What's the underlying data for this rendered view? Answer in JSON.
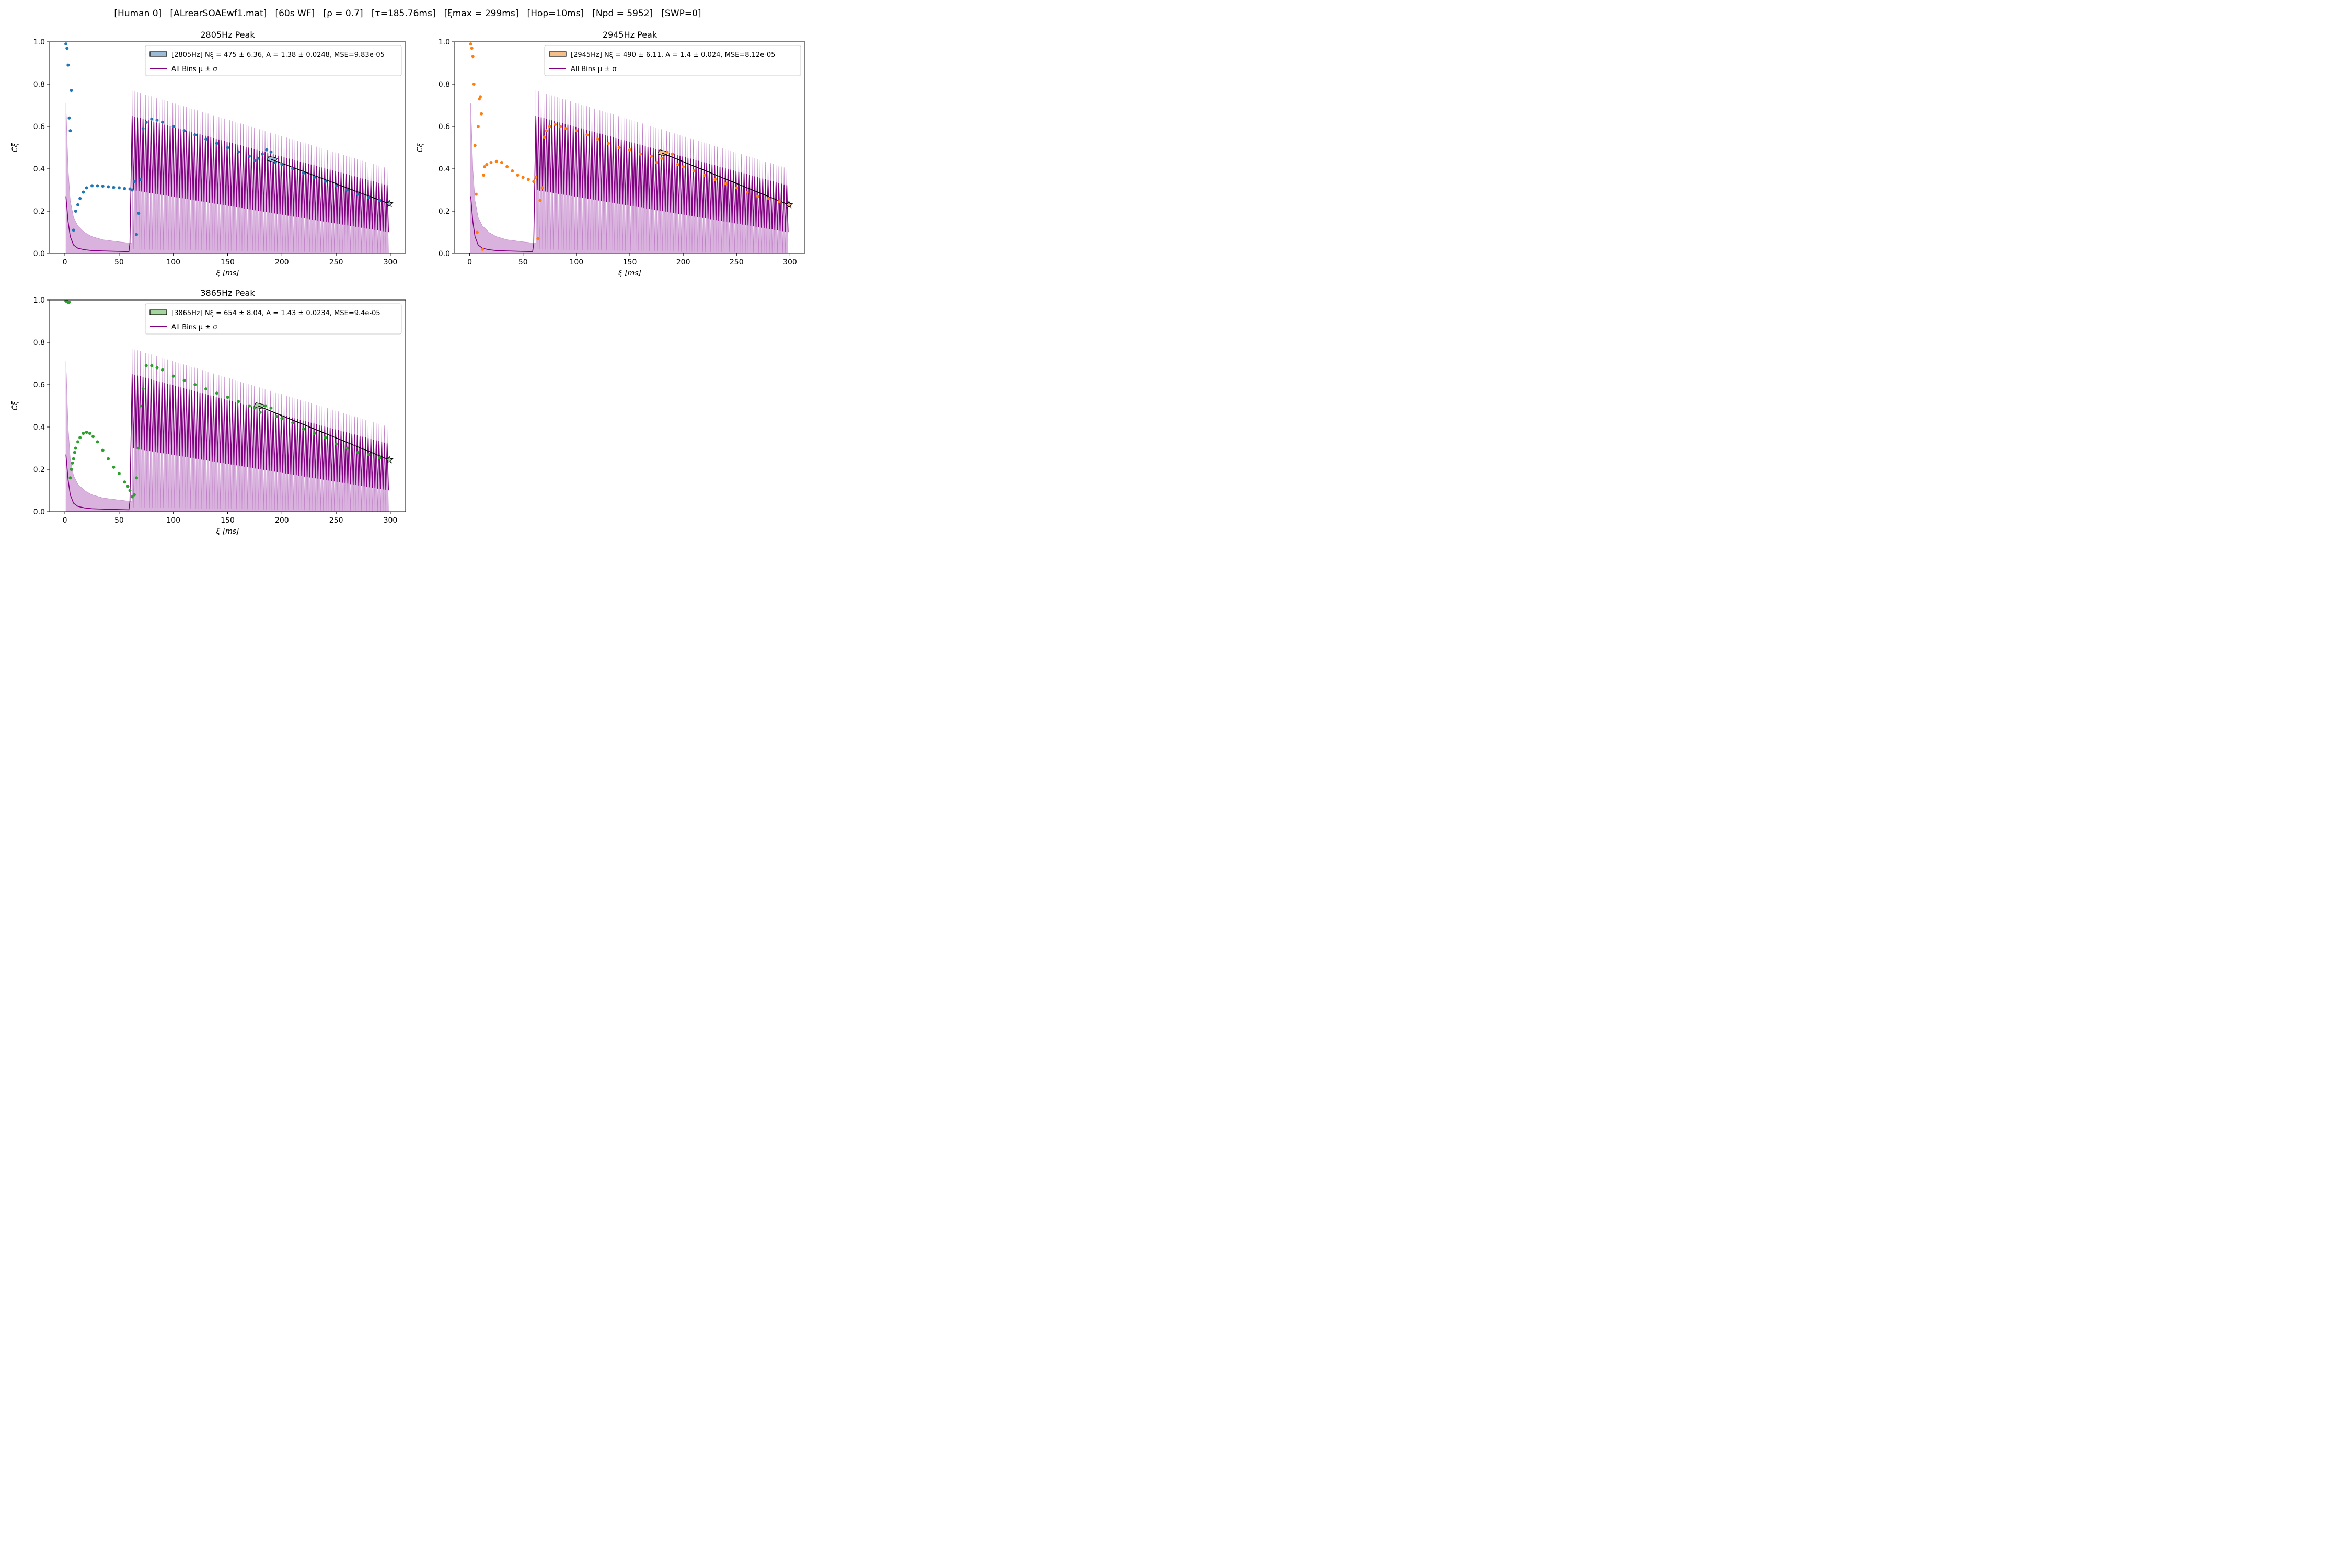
{
  "figure": {
    "suptitle": "[Human 0]   [ALrearSOAEwf1.mat]   [60s WF]   [ρ = 0.7]   [τ=185.76ms]   [ξmax = 299ms]   [Hop=10ms]   [Npd = 5952]   [SWP=0]"
  },
  "colors": {
    "mean_line": "#800080",
    "band_fill": "#c080c8",
    "fit_line": "#000000",
    "axes": "#000000"
  },
  "chart_data": [
    {
      "type": "scatter",
      "title": "2805Hz Peak",
      "xlabel": "ξ [ms]",
      "ylabel": "Cξ",
      "xlim": [
        -14,
        314
      ],
      "ylim": [
        0,
        1.0
      ],
      "xticks": [
        0,
        50,
        100,
        150,
        200,
        250,
        300
      ],
      "yticks": [
        0.0,
        0.2,
        0.4,
        0.6,
        0.8,
        1.0
      ],
      "grid": false,
      "legend_position": "top-right",
      "legend": [
        "[2805Hz] Nξ = 475 ± 6.36, A = 1.38 ± 0.0248, MSE=9.83e-05",
        "All Bins μ ± σ"
      ],
      "peak_color": "#1f77b4",
      "patch_color": "#9bbbd8",
      "scatter": {
        "x": [
          1,
          2,
          3,
          4,
          5,
          6,
          8,
          10,
          12,
          14,
          17,
          20,
          25,
          30,
          35,
          40,
          45,
          50,
          55,
          60,
          62,
          64,
          66,
          68,
          70,
          72,
          75,
          80,
          85,
          90,
          100,
          110,
          120,
          130,
          140,
          150,
          160,
          170,
          175,
          178,
          182,
          186,
          190,
          194,
          200,
          210,
          220,
          230,
          240,
          250,
          260,
          270,
          280,
          290,
          299
        ],
        "y": [
          0.99,
          0.97,
          0.89,
          0.64,
          0.58,
          0.77,
          0.11,
          0.2,
          0.23,
          0.26,
          0.29,
          0.31,
          0.32,
          0.32,
          0.318,
          0.315,
          0.312,
          0.31,
          0.307,
          0.305,
          0.3,
          0.34,
          0.09,
          0.19,
          0.35,
          0.59,
          0.62,
          0.635,
          0.63,
          0.62,
          0.6,
          0.58,
          0.56,
          0.54,
          0.52,
          0.5,
          0.48,
          0.46,
          0.44,
          0.45,
          0.47,
          0.49,
          0.48,
          0.43,
          0.42,
          0.4,
          0.38,
          0.36,
          0.34,
          0.32,
          0.3,
          0.28,
          0.265,
          0.25,
          0.235
        ]
      },
      "fit": {
        "x_range": [
          190,
          299
        ],
        "y_range": [
          0.445,
          0.235
        ],
        "marker_x": 299,
        "marker_y": 0.235
      },
      "mean_curve": {
        "x": [
          1,
          3,
          5,
          8,
          12,
          18,
          25,
          35,
          50,
          59,
          60
        ],
        "y": [
          0.27,
          0.15,
          0.08,
          0.04,
          0.025,
          0.018,
          0.014,
          0.012,
          0.01,
          0.009,
          0.05
        ]
      },
      "band_upper": {
        "x": [
          1,
          3,
          5,
          8,
          12,
          18,
          25,
          35,
          50,
          59
        ],
        "y": [
          0.71,
          0.4,
          0.25,
          0.17,
          0.13,
          0.1,
          0.08,
          0.065,
          0.055,
          0.05
        ]
      },
      "osc_region": {
        "x_start": 62,
        "x_end": 299,
        "period_ms": 2.5,
        "mean_high_start": 0.65,
        "mean_high_end": 0.32,
        "mean_low_start": 0.3,
        "mean_low_end": 0.1,
        "band_high_start": 0.77,
        "band_high_end": 0.4,
        "band_low_start": 0.02,
        "band_low_end": 0.0
      }
    },
    {
      "type": "scatter",
      "title": "2945Hz Peak",
      "xlabel": "ξ [ms]",
      "ylabel": "Cξ",
      "xlim": [
        -14,
        314
      ],
      "ylim": [
        0,
        1.0
      ],
      "xticks": [
        0,
        50,
        100,
        150,
        200,
        250,
        300
      ],
      "yticks": [
        0.0,
        0.2,
        0.4,
        0.6,
        0.8,
        1.0
      ],
      "grid": false,
      "legend_position": "top-right",
      "legend": [
        "[2945Hz] Nξ = 490 ± 6.11, A = 1.4 ± 0.024, MSE=8.12e-05",
        "All Bins μ ± σ"
      ],
      "peak_color": "#ff7f0e",
      "patch_color": "#f6bf8a",
      "scatter": {
        "x": [
          1,
          2,
          3,
          4,
          5,
          6,
          7,
          8,
          9,
          10,
          11,
          12,
          13,
          14,
          16,
          20,
          25,
          30,
          35,
          40,
          45,
          50,
          55,
          60,
          62,
          64,
          66,
          68,
          70,
          72,
          75,
          80,
          85,
          90,
          100,
          110,
          120,
          130,
          140,
          150,
          160,
          170,
          175,
          180,
          185,
          190,
          195,
          200,
          210,
          220,
          230,
          240,
          250,
          260,
          270,
          280,
          290,
          299
        ],
        "y": [
          0.99,
          0.97,
          0.93,
          0.8,
          0.51,
          0.28,
          0.1,
          0.6,
          0.73,
          0.74,
          0.66,
          0.02,
          0.37,
          0.41,
          0.42,
          0.43,
          0.435,
          0.43,
          0.41,
          0.39,
          0.37,
          0.36,
          0.35,
          0.34,
          0.36,
          0.07,
          0.25,
          0.31,
          0.55,
          0.58,
          0.6,
          0.61,
          0.6,
          0.59,
          0.58,
          0.56,
          0.54,
          0.52,
          0.5,
          0.49,
          0.47,
          0.46,
          0.43,
          0.45,
          0.48,
          0.47,
          0.42,
          0.41,
          0.39,
          0.37,
          0.35,
          0.33,
          0.31,
          0.29,
          0.27,
          0.26,
          0.245,
          0.23
        ]
      },
      "fit": {
        "x_range": [
          180,
          299
        ],
        "y_range": [
          0.475,
          0.23
        ],
        "marker_x": 299,
        "marker_y": 0.23
      },
      "mean_curve": {
        "x": [
          1,
          3,
          5,
          8,
          12,
          18,
          25,
          35,
          50,
          59,
          60
        ],
        "y": [
          0.27,
          0.15,
          0.08,
          0.04,
          0.025,
          0.018,
          0.014,
          0.012,
          0.01,
          0.009,
          0.05
        ]
      },
      "band_upper": {
        "x": [
          1,
          3,
          5,
          8,
          12,
          18,
          25,
          35,
          50,
          59
        ],
        "y": [
          0.71,
          0.4,
          0.25,
          0.17,
          0.13,
          0.1,
          0.08,
          0.065,
          0.055,
          0.05
        ]
      },
      "osc_region": {
        "x_start": 62,
        "x_end": 299,
        "period_ms": 2.5,
        "mean_high_start": 0.65,
        "mean_high_end": 0.32,
        "mean_low_start": 0.3,
        "mean_low_end": 0.1,
        "band_high_start": 0.77,
        "band_high_end": 0.4,
        "band_low_start": 0.02,
        "band_low_end": 0.0
      }
    },
    {
      "type": "scatter",
      "title": "3865Hz Peak",
      "xlabel": "ξ [ms]",
      "ylabel": "Cξ",
      "xlim": [
        -14,
        314
      ],
      "ylim": [
        0,
        1.0
      ],
      "xticks": [
        0,
        50,
        100,
        150,
        200,
        250,
        300
      ],
      "yticks": [
        0.0,
        0.2,
        0.4,
        0.6,
        0.8,
        1.0
      ],
      "grid": false,
      "legend_position": "top-right",
      "legend": [
        "[3865Hz] Nξ = 654 ± 8.04, A = 1.43 ± 0.0234, MSE=9.4e-05",
        "All Bins μ ± σ"
      ],
      "peak_color": "#2ca02c",
      "patch_color": "#a5d6a0",
      "scatter": {
        "x": [
          1,
          2,
          3,
          4,
          5,
          6,
          7,
          8,
          9,
          10,
          12,
          14,
          17,
          20,
          23,
          26,
          30,
          35,
          40,
          45,
          50,
          55,
          58,
          60,
          62,
          64,
          66,
          68,
          70,
          72,
          75,
          80,
          85,
          90,
          100,
          110,
          120,
          130,
          140,
          150,
          160,
          170,
          175,
          180,
          185,
          190,
          195,
          200,
          210,
          220,
          230,
          240,
          250,
          260,
          270,
          280,
          290,
          299
        ],
        "y": [
          0.995,
          0.993,
          0.99,
          0.99,
          0.16,
          0.2,
          0.23,
          0.25,
          0.28,
          0.3,
          0.33,
          0.35,
          0.37,
          0.375,
          0.37,
          0.355,
          0.33,
          0.29,
          0.25,
          0.21,
          0.18,
          0.14,
          0.12,
          0.1,
          0.07,
          0.08,
          0.16,
          0.3,
          0.5,
          0.58,
          0.69,
          0.69,
          0.68,
          0.67,
          0.64,
          0.62,
          0.6,
          0.58,
          0.56,
          0.54,
          0.52,
          0.5,
          0.49,
          0.47,
          0.5,
          0.49,
          0.45,
          0.44,
          0.42,
          0.39,
          0.37,
          0.35,
          0.32,
          0.3,
          0.28,
          0.27,
          0.255,
          0.245
        ]
      },
      "fit": {
        "x_range": [
          178,
          299
        ],
        "y_range": [
          0.5,
          0.245
        ],
        "marker_x": 299,
        "marker_y": 0.245
      },
      "mean_curve": {
        "x": [
          1,
          3,
          5,
          8,
          12,
          18,
          25,
          35,
          50,
          59,
          60
        ],
        "y": [
          0.27,
          0.15,
          0.08,
          0.04,
          0.025,
          0.018,
          0.014,
          0.012,
          0.01,
          0.009,
          0.05
        ]
      },
      "band_upper": {
        "x": [
          1,
          3,
          5,
          8,
          12,
          18,
          25,
          35,
          50,
          59
        ],
        "y": [
          0.71,
          0.4,
          0.25,
          0.17,
          0.13,
          0.1,
          0.08,
          0.065,
          0.055,
          0.05
        ]
      },
      "osc_region": {
        "x_start": 62,
        "x_end": 299,
        "period_ms": 2.5,
        "mean_high_start": 0.65,
        "mean_high_end": 0.32,
        "mean_low_start": 0.3,
        "mean_low_end": 0.1,
        "band_high_start": 0.77,
        "band_high_end": 0.4,
        "band_low_start": 0.02,
        "band_low_end": 0.0
      }
    }
  ]
}
